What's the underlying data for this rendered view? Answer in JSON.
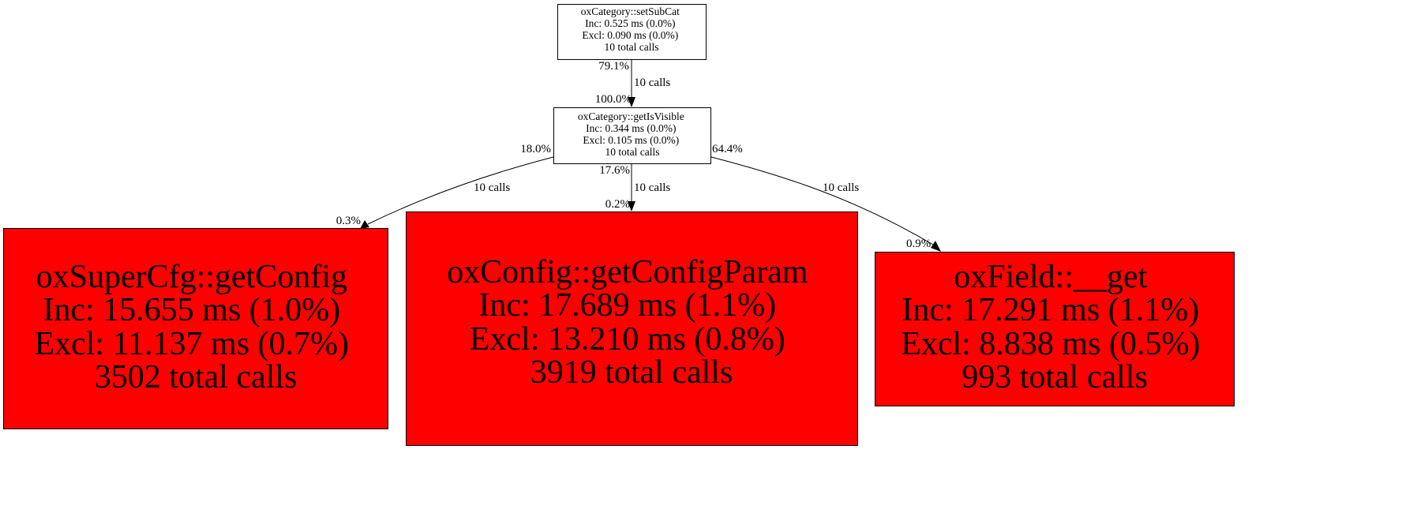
{
  "colors": {
    "hot_node": "#ff0000",
    "normal_node": "#ffffff",
    "edge": "#000000"
  },
  "nodes": {
    "setSubCat": {
      "name": "oxCategory::setSubCat",
      "inc": "Inc: 0.525 ms (0.0%)",
      "excl": "Excl: 0.090 ms (0.0%)",
      "calls": "10 total calls"
    },
    "getIsVisible": {
      "name": "oxCategory::getIsVisible",
      "inc": "Inc: 0.344 ms (0.0%)",
      "excl": "Excl: 0.105 ms (0.0%)",
      "calls": "10 total calls"
    },
    "getConfig": {
      "name": "oxSuperCfg::getConfig",
      "inc": "Inc: 15.655 ms (1.0%)",
      "excl": "Excl: 11.137 ms (0.7%)",
      "calls": "3502 total calls"
    },
    "getConfigParam": {
      "name": "oxConfig::getConfigParam",
      "inc": "Inc: 17.689 ms (1.1%)",
      "excl": "Excl: 13.210 ms (0.8%)",
      "calls": "3919 total calls"
    },
    "fieldGet": {
      "name": "oxField::__get",
      "inc": "Inc: 17.291 ms (1.1%)",
      "excl": "Excl: 8.838 ms (0.5%)",
      "calls": "993 total calls"
    }
  },
  "edges": {
    "setSubCat_getIsVisible": {
      "tail": "79.1%",
      "label": "10 calls",
      "head": "100.0%"
    },
    "getIsVisible_getConfig": {
      "tail": "18.0%",
      "label": "10 calls",
      "head": "0.3%"
    },
    "getIsVisible_getConfigParam": {
      "tail": "17.6%",
      "label": "10 calls",
      "head": "0.2%"
    },
    "getIsVisible_fieldGet": {
      "tail": "64.4%",
      "label": "10 calls",
      "head": "0.9%"
    }
  }
}
